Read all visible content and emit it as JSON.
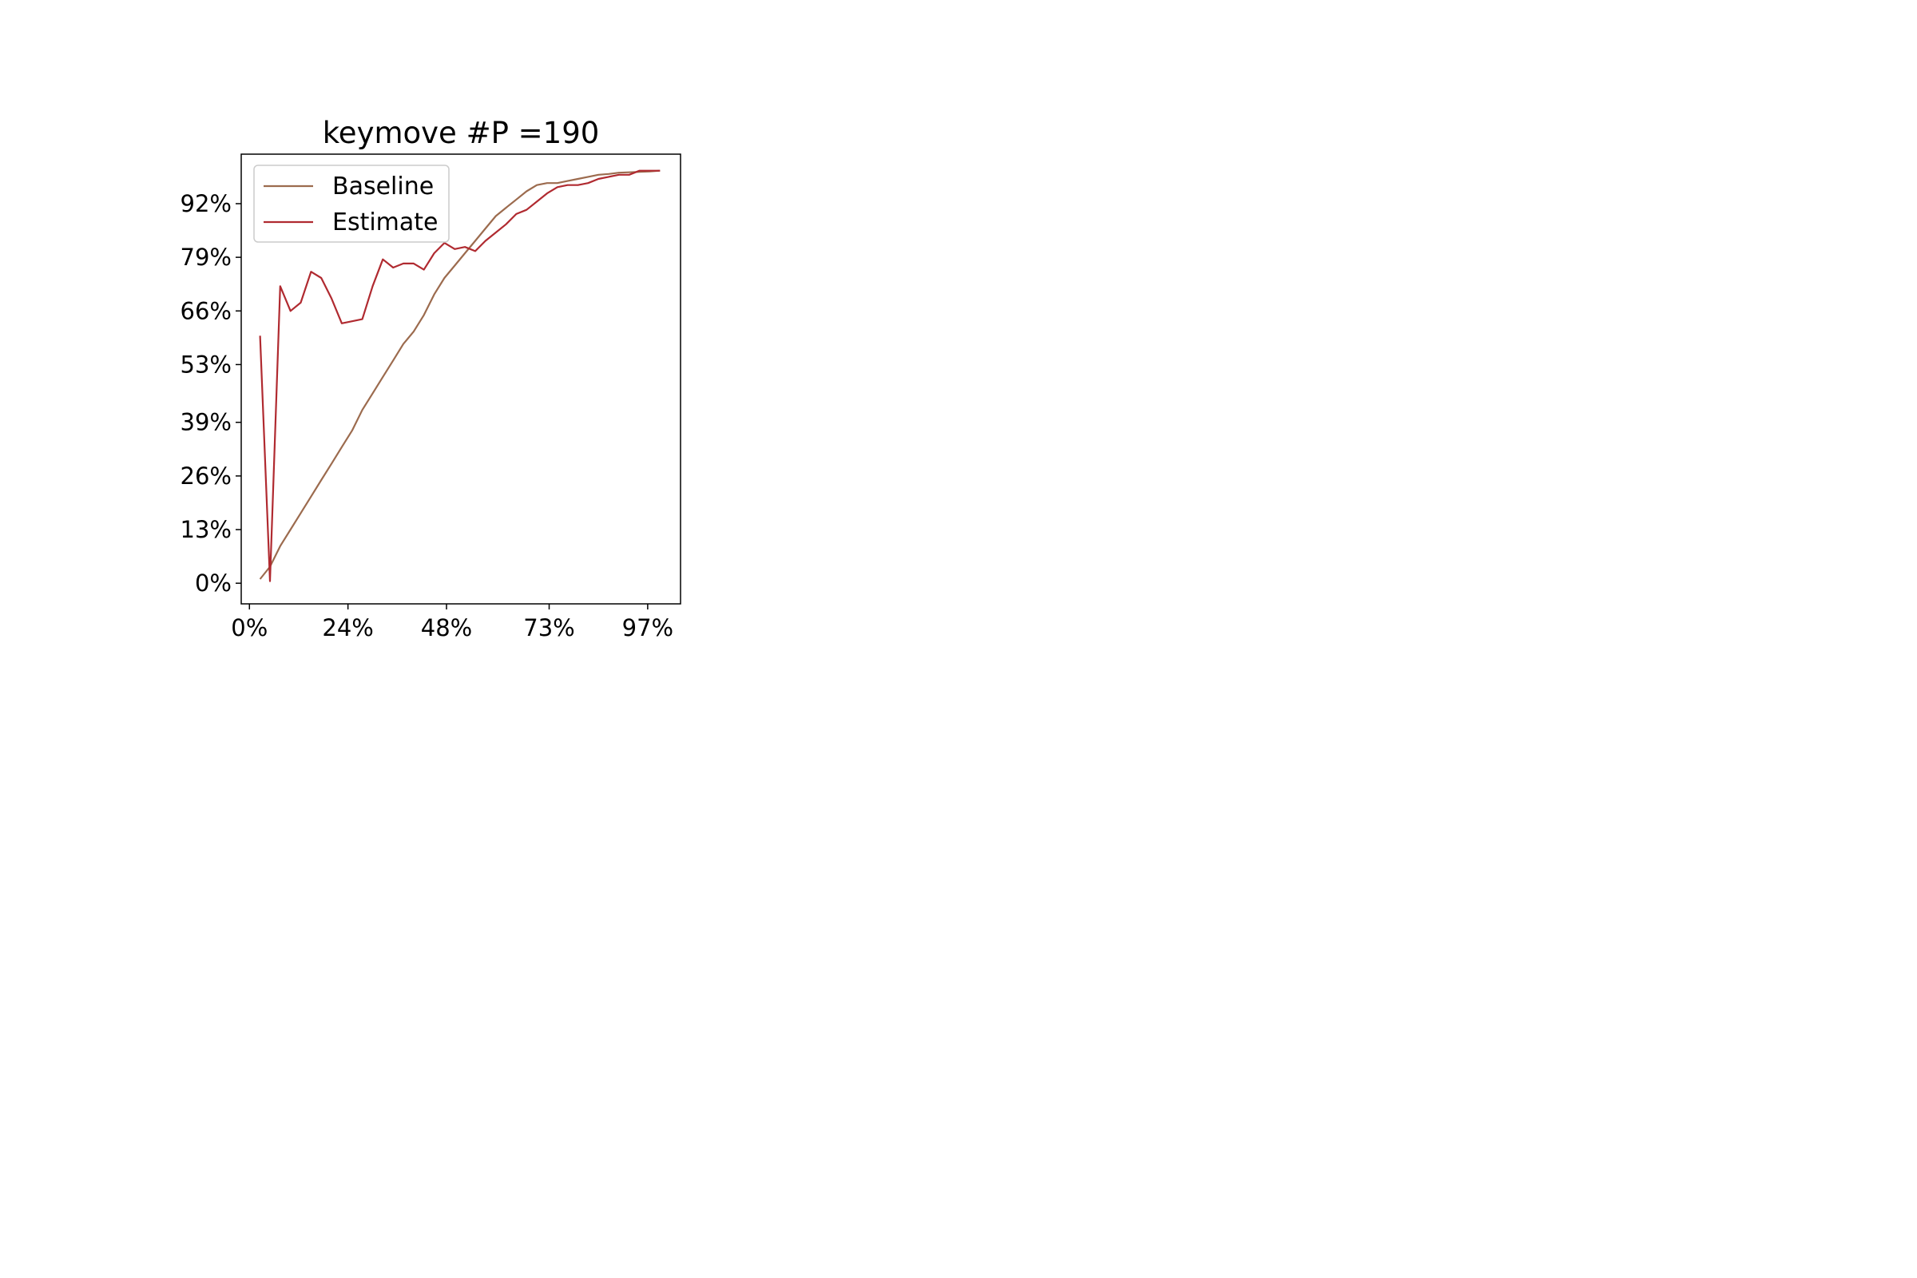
{
  "chart_data": {
    "type": "line",
    "title": "keymove #P =190",
    "xlabel": "",
    "ylabel": "",
    "x_tick_labels": [
      "0%",
      "24%",
      "48%",
      "73%",
      "97%"
    ],
    "x_tick_values": [
      0,
      24,
      48,
      73,
      97
    ],
    "y_tick_labels": [
      "0%",
      "13%",
      "26%",
      "39%",
      "53%",
      "66%",
      "79%",
      "92%"
    ],
    "y_tick_values": [
      0,
      13,
      26,
      39,
      53,
      66,
      79,
      92
    ],
    "xlim": [
      -2,
      105
    ],
    "ylim": [
      -5,
      104
    ],
    "grid": false,
    "legend_position": "upper left",
    "series": [
      {
        "name": "Baseline",
        "color": "#9c6b4e",
        "x": [
          2.6,
          5,
          7.5,
          10,
          12.5,
          15,
          17.5,
          20,
          22.5,
          25,
          27.5,
          30,
          32.5,
          35,
          37.5,
          40,
          42.5,
          45,
          47.5,
          50,
          52.5,
          55,
          57.5,
          60,
          62.5,
          65,
          67.5,
          70,
          72.5,
          75,
          77.5,
          80,
          82.5,
          85,
          87.5,
          90,
          92.5,
          95,
          97.5,
          100
        ],
        "y": [
          1,
          4,
          9,
          13,
          17,
          21,
          25,
          29,
          33,
          37,
          42,
          46,
          50,
          54,
          58,
          61,
          65,
          70,
          74,
          77,
          80,
          83,
          86,
          89,
          91,
          93,
          95,
          96.5,
          97,
          97,
          97.5,
          98,
          98.5,
          99,
          99.2,
          99.5,
          99.6,
          99.7,
          99.8,
          100
        ]
      },
      {
        "name": "Estimate",
        "color": "#b02a30",
        "x": [
          2.6,
          5,
          7.5,
          10,
          12.5,
          15,
          17.5,
          20,
          22.5,
          25,
          27.5,
          30,
          32.5,
          35,
          37.5,
          40,
          42.5,
          45,
          47.5,
          50,
          52.5,
          55,
          57.5,
          60,
          62.5,
          65,
          67.5,
          70,
          72.5,
          75,
          77.5,
          80,
          82.5,
          85,
          87.5,
          90,
          92.5,
          95,
          97.5,
          100
        ],
        "y": [
          60,
          0.5,
          72,
          66,
          68,
          75.5,
          74,
          69,
          63,
          63.5,
          64,
          72,
          78.5,
          76.5,
          77.5,
          77.5,
          76,
          80,
          82.5,
          81,
          81.5,
          80.5,
          83,
          85,
          87,
          89.5,
          90.5,
          92.5,
          94.5,
          96,
          96.5,
          96.5,
          97,
          98,
          98.5,
          99,
          99,
          100,
          100,
          100
        ]
      }
    ]
  }
}
